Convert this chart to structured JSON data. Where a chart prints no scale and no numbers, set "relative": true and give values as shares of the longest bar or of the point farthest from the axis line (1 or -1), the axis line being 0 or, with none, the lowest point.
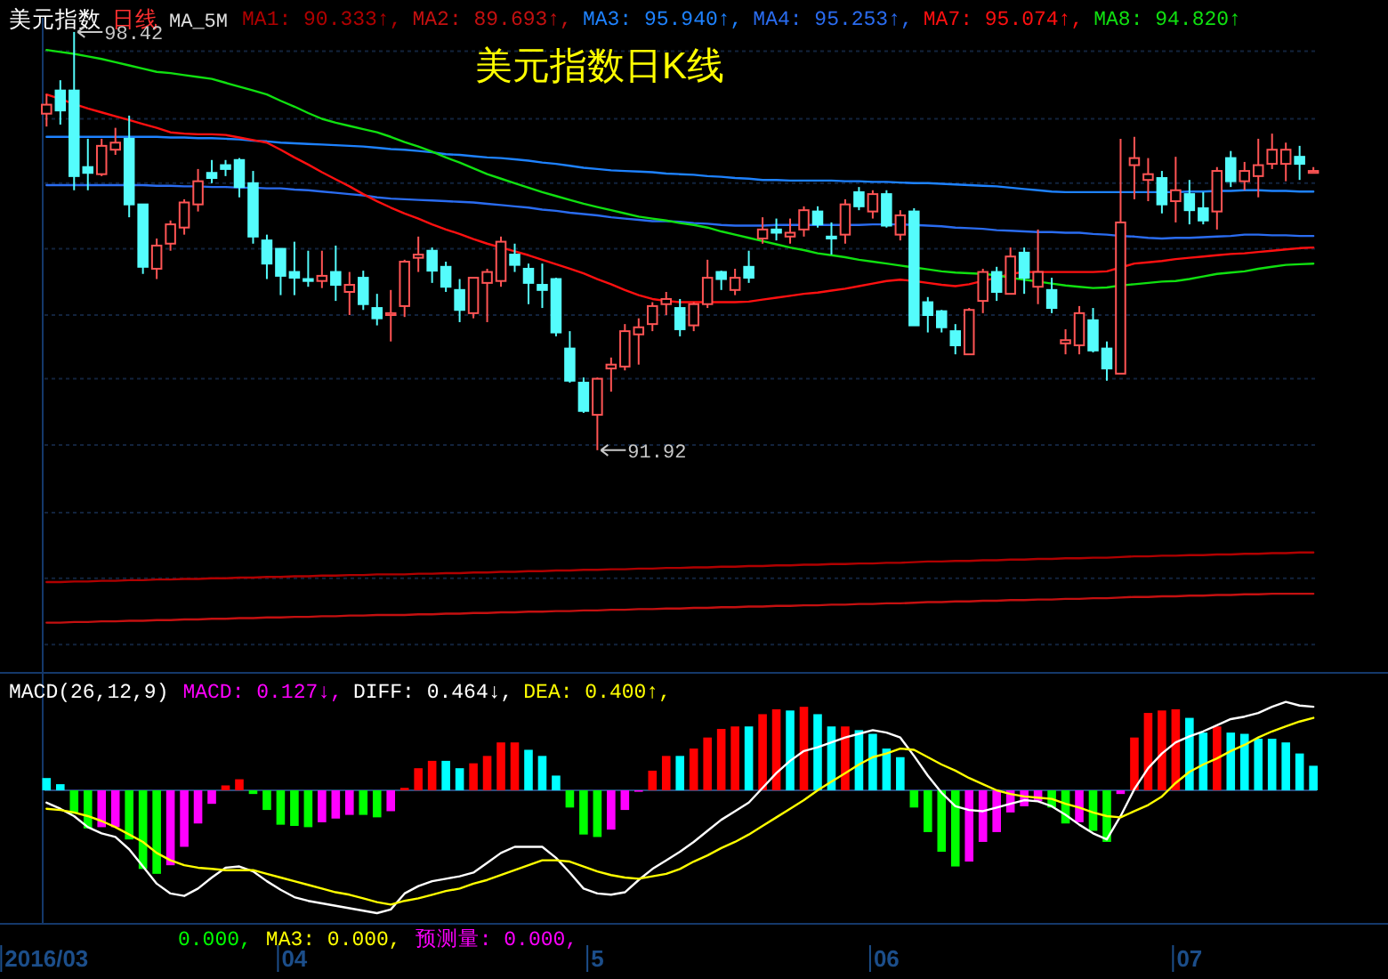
{
  "chart_data": [
    {
      "type": "candlestick",
      "title": "美元指数日K线",
      "annotations": [
        "美元指数",
        "日线",
        "MA_5M",
        "98.42",
        "91.92"
      ],
      "ylim": [
        88.46,
        98.64
      ],
      "yticks": [
        {
          "value": 98.12,
          "label": null
        },
        {
          "value": 97.07,
          "label": null
        },
        {
          "value": 96.07,
          "label": null
        },
        {
          "value": 95.05,
          "label": null
        },
        {
          "value": 94.02,
          "label": null
        },
        {
          "value": 93.03,
          "label": null
        },
        {
          "value": 92.0,
          "label": null
        },
        {
          "value": 90.95,
          "label": null
        },
        {
          "value": 89.93,
          "label": null
        },
        {
          "value": 88.9,
          "label": null
        }
      ],
      "grid": "y",
      "tick_labels": false,
      "categories": [
        null,
        null,
        null,
        null,
        null,
        null,
        null,
        null,
        null,
        null,
        null,
        null,
        null,
        null,
        null,
        null,
        null,
        null,
        null,
        null,
        null,
        null,
        null,
        null,
        null,
        null,
        null,
        null,
        null,
        null,
        null,
        null,
        null,
        null,
        null,
        null,
        null,
        null,
        null,
        null,
        null,
        null,
        null,
        null,
        null,
        null,
        null,
        null,
        null,
        null,
        null,
        null,
        null,
        null,
        null,
        null,
        null,
        null,
        null,
        null,
        null,
        null,
        null,
        null,
        null,
        null,
        null,
        null,
        null,
        null,
        null,
        null,
        null,
        null,
        null,
        null,
        null,
        null,
        null,
        null,
        null,
        null,
        null,
        null,
        null,
        null,
        null,
        null,
        null,
        null,
        null,
        null,
        null
      ],
      "ohlc": [
        [
          97.15,
          97.45,
          96.95,
          97.29
        ],
        [
          97.51,
          97.67,
          96.98,
          97.2
        ],
        [
          97.51,
          98.42,
          95.96,
          96.18
        ],
        [
          96.32,
          96.76,
          95.96,
          96.23
        ],
        [
          96.21,
          96.76,
          96.18,
          96.65
        ],
        [
          96.59,
          96.93,
          96.51,
          96.7
        ],
        [
          96.76,
          97.12,
          95.54,
          95.74
        ],
        [
          95.74,
          95.74,
          94.66,
          94.77
        ],
        [
          94.74,
          95.21,
          94.58,
          95.1
        ],
        [
          95.13,
          95.49,
          95.02,
          95.43
        ],
        [
          95.38,
          95.82,
          95.27,
          95.77
        ],
        [
          95.74,
          96.29,
          95.63,
          96.1
        ],
        [
          96.23,
          96.43,
          96.07,
          96.15
        ],
        [
          96.35,
          96.43,
          96.18,
          96.29
        ],
        [
          96.43,
          96.46,
          95.85,
          96.01
        ],
        [
          96.07,
          96.26,
          95.13,
          95.24
        ],
        [
          95.18,
          95.27,
          94.58,
          94.82
        ],
        [
          95.05,
          95.05,
          94.33,
          94.63
        ],
        [
          94.69,
          95.16,
          94.33,
          94.6
        ],
        [
          94.58,
          95.02,
          94.46,
          94.55
        ],
        [
          94.55,
          95.02,
          94.44,
          94.63
        ],
        [
          94.69,
          95.1,
          94.24,
          94.49
        ],
        [
          94.38,
          94.69,
          94.02,
          94.49
        ],
        [
          94.6,
          94.71,
          94.1,
          94.19
        ],
        [
          94.13,
          94.35,
          93.86,
          93.97
        ],
        [
          94.02,
          94.41,
          93.61,
          94.05
        ],
        [
          94.16,
          94.88,
          93.99,
          94.85
        ],
        [
          94.91,
          95.24,
          94.69,
          94.96
        ],
        [
          95.02,
          95.07,
          94.52,
          94.71
        ],
        [
          94.77,
          94.85,
          94.38,
          94.46
        ],
        [
          94.41,
          94.58,
          93.91,
          94.1
        ],
        [
          94.05,
          94.6,
          93.97,
          94.6
        ],
        [
          94.52,
          94.74,
          93.91,
          94.69
        ],
        [
          94.55,
          95.24,
          94.46,
          95.16
        ],
        [
          94.96,
          95.13,
          94.69,
          94.8
        ],
        [
          94.74,
          94.82,
          94.19,
          94.52
        ],
        [
          94.49,
          94.82,
          94.13,
          94.41
        ],
        [
          94.58,
          94.6,
          93.69,
          93.75
        ],
        [
          93.5,
          93.77,
          92.97,
          93.0
        ],
        [
          92.97,
          93.05,
          92.5,
          92.53
        ],
        [
          92.47,
          93.05,
          91.92,
          93.03
        ],
        [
          93.19,
          93.36,
          92.83,
          93.25
        ],
        [
          93.22,
          93.88,
          93.16,
          93.77
        ],
        [
          93.72,
          93.97,
          93.25,
          93.83
        ],
        [
          93.88,
          94.22,
          93.77,
          94.16
        ],
        [
          94.19,
          94.38,
          94.02,
          94.27
        ],
        [
          94.13,
          94.27,
          93.69,
          93.8
        ],
        [
          93.86,
          94.22,
          93.77,
          94.19
        ],
        [
          94.19,
          94.88,
          94.13,
          94.6
        ],
        [
          94.69,
          94.71,
          94.41,
          94.58
        ],
        [
          94.41,
          94.74,
          94.33,
          94.6
        ],
        [
          94.77,
          95.02,
          94.52,
          94.6
        ],
        [
          95.21,
          95.54,
          95.13,
          95.35
        ],
        [
          95.35,
          95.52,
          95.18,
          95.3
        ],
        [
          95.24,
          95.52,
          95.13,
          95.3
        ],
        [
          95.35,
          95.71,
          95.24,
          95.65
        ],
        [
          95.63,
          95.71,
          95.38,
          95.43
        ],
        [
          95.24,
          95.46,
          94.96,
          95.21
        ],
        [
          95.27,
          95.82,
          95.13,
          95.74
        ],
        [
          95.93,
          96.01,
          95.65,
          95.71
        ],
        [
          95.63,
          95.96,
          95.52,
          95.9
        ],
        [
          95.9,
          95.96,
          95.38,
          95.41
        ],
        [
          95.27,
          95.65,
          95.18,
          95.57
        ],
        [
          95.63,
          95.68,
          93.86,
          93.86
        ],
        [
          94.22,
          94.3,
          93.75,
          94.02
        ],
        [
          94.08,
          94.1,
          93.75,
          93.83
        ],
        [
          93.77,
          93.88,
          93.41,
          93.55
        ],
        [
          93.41,
          94.13,
          93.41,
          94.1
        ],
        [
          94.24,
          94.74,
          94.05,
          94.69
        ],
        [
          94.69,
          94.77,
          94.24,
          94.38
        ],
        [
          94.35,
          95.07,
          94.35,
          94.93
        ],
        [
          94.99,
          95.07,
          94.35,
          94.6
        ],
        [
          94.46,
          95.35,
          94.19,
          94.69
        ],
        [
          94.41,
          94.6,
          94.05,
          94.13
        ],
        [
          93.58,
          93.8,
          93.41,
          93.63
        ],
        [
          93.55,
          94.16,
          93.41,
          94.05
        ],
        [
          93.94,
          94.13,
          93.44,
          93.47
        ],
        [
          93.5,
          93.61,
          93.0,
          93.19
        ],
        [
          93.11,
          96.76,
          93.11,
          95.46
        ],
        [
          96.35,
          96.79,
          95.82,
          96.46
        ],
        [
          96.12,
          96.46,
          95.79,
          96.21
        ],
        [
          96.15,
          96.26,
          95.6,
          95.74
        ],
        [
          95.79,
          96.48,
          95.46,
          95.96
        ],
        [
          95.9,
          96.12,
          95.43,
          95.65
        ],
        [
          95.68,
          95.93,
          95.43,
          95.49
        ],
        [
          95.63,
          96.32,
          95.35,
          96.26
        ],
        [
          96.46,
          96.57,
          96.01,
          96.1
        ],
        [
          96.1,
          96.4,
          95.96,
          96.26
        ],
        [
          96.18,
          96.76,
          95.85,
          96.35
        ],
        [
          96.37,
          96.84,
          96.29,
          96.59
        ],
        [
          96.37,
          96.7,
          96.1,
          96.59
        ],
        [
          96.48,
          96.65,
          96.12,
          96.37
        ],
        [
          96.23,
          96.32,
          96.23,
          96.26
        ]
      ],
      "colors": [
        "#ff5454",
        "#54fcfc",
        "#54fcfc",
        "#54fcfc",
        "#ff5454",
        "#ff5454",
        "#54fcfc",
        "#54fcfc",
        "#ff5454",
        "#ff5454",
        "#ff5454",
        "#ff5454",
        "#54fcfc",
        "#54fcfc",
        "#54fcfc",
        "#54fcfc",
        "#54fcfc",
        "#54fcfc",
        "#54fcfc",
        "#54fcfc",
        "#ff5454",
        "#54fcfc",
        "#ff5454",
        "#54fcfc",
        "#54fcfc",
        "#ff5454",
        "#ff5454",
        "#ff5454",
        "#54fcfc",
        "#54fcfc",
        "#54fcfc",
        "#ff5454",
        "#ff5454",
        "#ff5454",
        "#54fcfc",
        "#54fcfc",
        "#54fcfc",
        "#54fcfc",
        "#54fcfc",
        "#54fcfc",
        "#ff5454",
        "#ff5454",
        "#ff5454",
        "#ff5454",
        "#ff5454",
        "#ff5454",
        "#54fcfc",
        "#ff5454",
        "#ff5454",
        "#54fcfc",
        "#ff5454",
        "#54fcfc",
        "#ff5454",
        "#54fcfc",
        "#ff5454",
        "#ff5454",
        "#54fcfc",
        "#54fcfc",
        "#ff5454",
        "#54fcfc",
        "#ff5454",
        "#54fcfc",
        "#ff5454",
        "#54fcfc",
        "#54fcfc",
        "#54fcfc",
        "#54fcfc",
        "#ff5454",
        "#ff5454",
        "#54fcfc",
        "#ff5454",
        "#54fcfc",
        "#ff5454",
        "#54fcfc",
        "#ff5454",
        "#ff5454",
        "#54fcfc",
        "#54fcfc",
        "#ff5454",
        "#ff5454",
        "#ff5454",
        "#54fcfc",
        "#ff5454",
        "#54fcfc",
        "#54fcfc",
        "#ff5454",
        "#54fcfc",
        "#ff5454",
        "#ff5454",
        "#ff5454",
        "#ff5454",
        "#54fcfc",
        "#ff5454"
      ],
      "series": [
        {
          "name": "MA1: 90.333↑,",
          "type": "line",
          "color": "#b00000",
          "values": [
            89.87,
            89.87,
            89.88,
            89.88,
            89.89,
            89.89,
            89.9,
            89.9,
            89.91,
            89.91,
            89.92,
            89.92,
            89.93,
            89.93,
            89.94,
            89.94,
            89.95,
            89.95,
            89.96,
            89.96,
            89.97,
            89.97,
            89.98,
            89.98,
            89.99,
            89.99,
            89.99,
            90.0,
            90.0,
            90.01,
            90.01,
            90.02,
            90.02,
            90.03,
            90.03,
            90.04,
            90.04,
            90.05,
            90.05,
            90.06,
            90.06,
            90.07,
            90.07,
            90.08,
            90.08,
            90.09,
            90.09,
            90.1,
            90.1,
            90.11,
            90.11,
            90.12,
            90.12,
            90.13,
            90.13,
            90.14,
            90.14,
            90.15,
            90.15,
            90.16,
            90.16,
            90.17,
            90.17,
            90.18,
            90.19,
            90.19,
            90.2,
            90.2,
            90.21,
            90.21,
            90.22,
            90.22,
            90.23,
            90.23,
            90.24,
            90.24,
            90.25,
            90.25,
            90.26,
            90.27,
            90.27,
            90.28,
            90.28,
            90.29,
            90.29,
            90.3,
            90.3,
            90.31,
            90.31,
            90.32,
            90.32,
            90.33,
            90.33
          ]
        },
        {
          "name": "MA2: 89.693↑,",
          "type": "line",
          "color": "#c41010",
          "values": [
            89.24,
            89.24,
            89.25,
            89.25,
            89.26,
            89.26,
            89.27,
            89.27,
            89.28,
            89.28,
            89.29,
            89.29,
            89.3,
            89.3,
            89.31,
            89.31,
            89.32,
            89.32,
            89.33,
            89.33,
            89.34,
            89.34,
            89.35,
            89.35,
            89.36,
            89.36,
            89.36,
            89.37,
            89.37,
            89.38,
            89.38,
            89.39,
            89.39,
            89.4,
            89.4,
            89.41,
            89.41,
            89.42,
            89.42,
            89.43,
            89.43,
            89.44,
            89.44,
            89.45,
            89.45,
            89.46,
            89.46,
            89.47,
            89.47,
            89.48,
            89.48,
            89.49,
            89.49,
            89.5,
            89.5,
            89.51,
            89.51,
            89.52,
            89.52,
            89.53,
            89.53,
            89.54,
            89.54,
            89.55,
            89.56,
            89.56,
            89.57,
            89.57,
            89.58,
            89.58,
            89.59,
            89.59,
            89.6,
            89.6,
            89.61,
            89.61,
            89.62,
            89.62,
            89.63,
            89.64,
            89.64,
            89.65,
            89.65,
            89.66,
            89.66,
            89.67,
            89.67,
            89.68,
            89.68,
            89.69,
            89.69,
            89.69,
            89.69
          ]
        },
        {
          "name": "MA3: 95.940↑,",
          "type": "line",
          "color": "#1e82ff",
          "values": [
            96.79,
            96.79,
            96.79,
            96.79,
            96.79,
            96.79,
            96.79,
            96.79,
            96.79,
            96.78,
            96.78,
            96.77,
            96.77,
            96.76,
            96.75,
            96.73,
            96.72,
            96.7,
            96.69,
            96.68,
            96.67,
            96.66,
            96.65,
            96.64,
            96.62,
            96.6,
            96.59,
            96.57,
            96.55,
            96.52,
            96.51,
            96.49,
            96.47,
            96.46,
            96.44,
            96.42,
            96.39,
            96.37,
            96.34,
            96.31,
            96.29,
            96.27,
            96.26,
            96.25,
            96.24,
            96.22,
            96.21,
            96.2,
            96.18,
            96.17,
            96.15,
            96.14,
            96.12,
            96.12,
            96.11,
            96.11,
            96.11,
            96.11,
            96.1,
            96.1,
            96.09,
            96.09,
            96.08,
            96.07,
            96.07,
            96.06,
            96.05,
            96.04,
            96.03,
            96.02,
            96.0,
            95.98,
            95.96,
            95.94,
            95.93,
            95.93,
            95.93,
            95.93,
            95.93,
            95.93,
            95.93,
            95.93,
            95.93,
            95.94,
            95.94,
            95.95,
            95.95,
            95.96,
            95.96,
            95.95,
            95.95,
            95.94,
            95.94
          ]
        },
        {
          "name": "MA4: 95.253↑,",
          "type": "line",
          "color": "#2a6cf0",
          "values": [
            96.04,
            96.04,
            96.04,
            96.04,
            96.04,
            96.04,
            96.04,
            96.04,
            96.03,
            96.03,
            96.02,
            96.02,
            96.01,
            96.01,
            96.0,
            96.0,
            95.99,
            95.99,
            95.97,
            95.96,
            95.94,
            95.92,
            95.9,
            95.88,
            95.85,
            95.83,
            95.82,
            95.81,
            95.8,
            95.79,
            95.78,
            95.77,
            95.75,
            95.73,
            95.71,
            95.69,
            95.66,
            95.64,
            95.61,
            95.59,
            95.57,
            95.54,
            95.52,
            95.5,
            95.48,
            95.48,
            95.47,
            95.45,
            95.44,
            95.42,
            95.41,
            95.41,
            95.41,
            95.42,
            95.42,
            95.42,
            95.42,
            95.42,
            95.42,
            95.42,
            95.43,
            95.43,
            95.43,
            95.42,
            95.41,
            95.4,
            95.38,
            95.37,
            95.36,
            95.34,
            95.33,
            95.32,
            95.31,
            95.31,
            95.3,
            95.3,
            95.28,
            95.27,
            95.25,
            95.24,
            95.22,
            95.21,
            95.22,
            95.22,
            95.23,
            95.24,
            95.25,
            95.27,
            95.27,
            95.26,
            95.26,
            95.25,
            95.25
          ]
        },
        {
          "name": "MA7: 95.074↑,",
          "type": "line",
          "color": "#ff1010",
          "values": [
            97.45,
            97.38,
            97.3,
            97.23,
            97.17,
            97.11,
            97.05,
            96.99,
            96.93,
            96.86,
            96.84,
            96.83,
            96.83,
            96.82,
            96.78,
            96.74,
            96.7,
            96.59,
            96.47,
            96.36,
            96.24,
            96.13,
            96.02,
            95.9,
            95.79,
            95.69,
            95.6,
            95.52,
            95.43,
            95.35,
            95.28,
            95.2,
            95.13,
            95.07,
            95.01,
            94.95,
            94.88,
            94.81,
            94.74,
            94.67,
            94.58,
            94.5,
            94.41,
            94.33,
            94.27,
            94.24,
            94.22,
            94.22,
            94.22,
            94.22,
            94.22,
            94.23,
            94.26,
            94.29,
            94.32,
            94.35,
            94.37,
            94.4,
            94.43,
            94.47,
            94.51,
            94.55,
            94.57,
            94.55,
            94.52,
            94.49,
            94.47,
            94.5,
            94.55,
            94.6,
            94.66,
            94.69,
            94.69,
            94.69,
            94.69,
            94.69,
            94.69,
            94.7,
            94.76,
            94.82,
            94.84,
            94.86,
            94.89,
            94.91,
            94.93,
            94.95,
            94.97,
            94.98,
            95.0,
            95.02,
            95.04,
            95.06,
            95.07
          ]
        },
        {
          "name": "MA8: 94.820↑",
          "type": "line",
          "color": "#10e010",
          "values": [
            98.14,
            98.11,
            98.08,
            98.04,
            98.0,
            97.95,
            97.9,
            97.85,
            97.8,
            97.78,
            97.75,
            97.72,
            97.69,
            97.63,
            97.57,
            97.51,
            97.45,
            97.35,
            97.26,
            97.16,
            97.07,
            97.01,
            96.96,
            96.91,
            96.86,
            96.79,
            96.71,
            96.64,
            96.56,
            96.47,
            96.39,
            96.3,
            96.21,
            96.14,
            96.07,
            96.0,
            95.93,
            95.87,
            95.81,
            95.75,
            95.7,
            95.65,
            95.6,
            95.55,
            95.52,
            95.49,
            95.45,
            95.42,
            95.38,
            95.32,
            95.27,
            95.22,
            95.17,
            95.12,
            95.07,
            95.03,
            94.98,
            94.95,
            94.92,
            94.88,
            94.85,
            94.82,
            94.79,
            94.76,
            94.73,
            94.7,
            94.68,
            94.67,
            94.66,
            94.64,
            94.6,
            94.57,
            94.54,
            94.51,
            94.48,
            94.46,
            94.44,
            94.45,
            94.48,
            94.5,
            94.52,
            94.54,
            94.55,
            94.58,
            94.62,
            94.66,
            94.68,
            94.7,
            94.74,
            94.77,
            94.8,
            94.81,
            94.82
          ]
        }
      ]
    },
    {
      "type": "bar",
      "relative": true,
      "title": "MACD(26,12,9)",
      "tick_labels": "x",
      "ref_lines": [
        {
          "axis": "y",
          "value": 0,
          "color": "#2a4a7a"
        }
      ],
      "annotations": [
        "0.000,",
        "MA3: 0.000,",
        "预测量: 0.000,"
      ],
      "categories": [
        "2016/03",
        null,
        null,
        null,
        null,
        null,
        null,
        null,
        null,
        null,
        null,
        null,
        null,
        null,
        null,
        null,
        null,
        null,
        "04",
        null,
        null,
        null,
        null,
        null,
        null,
        null,
        null,
        null,
        null,
        null,
        null,
        null,
        null,
        null,
        null,
        null,
        null,
        null,
        null,
        null,
        "5",
        null,
        null,
        null,
        null,
        null,
        null,
        null,
        null,
        null,
        null,
        null,
        null,
        null,
        null,
        null,
        null,
        null,
        null,
        null,
        null,
        "06",
        null,
        null,
        null,
        null,
        null,
        null,
        null,
        null,
        null,
        null,
        null,
        null,
        null,
        null,
        null,
        null,
        null,
        null,
        null,
        null,
        null,
        "07",
        null,
        null,
        null,
        null,
        null,
        null,
        null,
        null,
        null
      ],
      "series": [
        {
          "name": "MACD: 0.127↓,",
          "type": "bar",
          "color": "#ff00ff",
          "values": [
            0.1,
            0.05,
            -0.19,
            -0.31,
            -0.3,
            -0.3,
            -0.4,
            -0.64,
            -0.68,
            -0.61,
            -0.46,
            -0.27,
            -0.11,
            0.04,
            0.09,
            -0.03,
            -0.16,
            -0.28,
            -0.29,
            -0.3,
            -0.26,
            -0.23,
            -0.2,
            -0.2,
            -0.22,
            -0.17,
            0.02,
            0.18,
            0.24,
            0.24,
            0.18,
            0.22,
            0.28,
            0.39,
            0.39,
            0.33,
            0.28,
            0.12,
            -0.14,
            -0.36,
            -0.38,
            -0.32,
            -0.16,
            -0.01,
            0.16,
            0.28,
            0.28,
            0.34,
            0.43,
            0.5,
            0.52,
            0.52,
            0.62,
            0.66,
            0.65,
            0.68,
            0.62,
            0.52,
            0.52,
            0.49,
            0.46,
            0.34,
            0.27,
            -0.14,
            -0.34,
            -0.5,
            -0.62,
            -0.58,
            -0.42,
            -0.34,
            -0.18,
            -0.13,
            -0.09,
            -0.14,
            -0.27,
            -0.26,
            -0.33,
            -0.42,
            -0.03,
            0.43,
            0.63,
            0.65,
            0.66,
            0.59,
            0.47,
            0.52,
            0.47,
            0.46,
            0.42,
            0.42,
            0.39,
            0.3,
            0.2
          ],
          "colors": [
            "#00ffff",
            "#00ffff",
            "#00ff00",
            "#00ff00",
            "#ff00ff",
            "#ff00ff",
            "#00ff00",
            "#00ff00",
            "#00ff00",
            "#ff00ff",
            "#ff00ff",
            "#ff00ff",
            "#ff00ff",
            "#ff0000",
            "#ff0000",
            "#00ff00",
            "#00ff00",
            "#00ff00",
            "#00ff00",
            "#00ff00",
            "#ff00ff",
            "#ff00ff",
            "#ff00ff",
            "#00ff00",
            "#00ff00",
            "#ff00ff",
            "#ff0000",
            "#ff0000",
            "#ff0000",
            "#00ffff",
            "#00ffff",
            "#ff0000",
            "#ff0000",
            "#ff0000",
            "#ff0000",
            "#00ffff",
            "#00ffff",
            "#00ffff",
            "#00ff00",
            "#00ff00",
            "#00ff00",
            "#ff00ff",
            "#ff00ff",
            "#ff00ff",
            "#ff0000",
            "#ff0000",
            "#00ffff",
            "#ff0000",
            "#ff0000",
            "#ff0000",
            "#ff0000",
            "#00ffff",
            "#ff0000",
            "#ff0000",
            "#00ffff",
            "#ff0000",
            "#00ffff",
            "#00ffff",
            "#ff0000",
            "#00ffff",
            "#00ffff",
            "#00ffff",
            "#00ffff",
            "#00ff00",
            "#00ff00",
            "#00ff00",
            "#00ff00",
            "#ff00ff",
            "#ff00ff",
            "#ff00ff",
            "#ff00ff",
            "#ff00ff",
            "#ff00ff",
            "#00ff00",
            "#00ff00",
            "#ff00ff",
            "#00ff00",
            "#00ff00",
            "#ff00ff",
            "#ff0000",
            "#ff0000",
            "#ff0000",
            "#ff0000",
            "#00ffff",
            "#00ffff",
            "#ff0000",
            "#00ffff",
            "#00ffff",
            "#00ffff",
            "#00ffff",
            "#00ffff",
            "#00ffff",
            "#00ffff"
          ]
        },
        {
          "name": "DIFF: 0.464↓,",
          "type": "line",
          "color": "#ffffff",
          "values": [
            -0.1,
            -0.15,
            -0.21,
            -0.3,
            -0.35,
            -0.38,
            -0.48,
            -0.62,
            -0.76,
            -0.84,
            -0.86,
            -0.8,
            -0.71,
            -0.63,
            -0.62,
            -0.66,
            -0.74,
            -0.81,
            -0.87,
            -0.9,
            -0.92,
            -0.94,
            -0.96,
            -0.98,
            -1,
            -0.97,
            -0.84,
            -0.78,
            -0.74,
            -0.72,
            -0.7,
            -0.67,
            -0.59,
            -0.51,
            -0.46,
            -0.46,
            -0.46,
            -0.55,
            -0.67,
            -0.8,
            -0.84,
            -0.85,
            -0.83,
            -0.73,
            -0.64,
            -0.57,
            -0.5,
            -0.42,
            -0.33,
            -0.24,
            -0.17,
            -0.1,
            0.02,
            0.14,
            0.24,
            0.32,
            0.35,
            0.39,
            0.43,
            0.46,
            0.49,
            0.47,
            0.43,
            0.28,
            0.12,
            -0.02,
            -0.13,
            -0.16,
            -0.17,
            -0.14,
            -0.11,
            -0.08,
            -0.09,
            -0.13,
            -0.2,
            -0.28,
            -0.35,
            -0.4,
            -0.21,
            0.01,
            0.18,
            0.3,
            0.39,
            0.44,
            0.48,
            0.53,
            0.58,
            0.6,
            0.63,
            0.68,
            0.72,
            0.69,
            0.68
          ]
        },
        {
          "name": "DEA: 0.400↑,",
          "type": "line",
          "color": "#ffff00",
          "values": [
            -0.15,
            -0.16,
            -0.18,
            -0.21,
            -0.25,
            -0.3,
            -0.36,
            -0.42,
            -0.51,
            -0.57,
            -0.61,
            -0.63,
            -0.64,
            -0.65,
            -0.65,
            -0.65,
            -0.68,
            -0.71,
            -0.74,
            -0.77,
            -0.8,
            -0.83,
            -0.85,
            -0.88,
            -0.91,
            -0.93,
            -0.9,
            -0.88,
            -0.85,
            -0.82,
            -0.8,
            -0.76,
            -0.73,
            -0.69,
            -0.65,
            -0.61,
            -0.57,
            -0.57,
            -0.58,
            -0.62,
            -0.66,
            -0.69,
            -0.71,
            -0.72,
            -0.7,
            -0.68,
            -0.64,
            -0.58,
            -0.53,
            -0.47,
            -0.42,
            -0.36,
            -0.29,
            -0.22,
            -0.15,
            -0.08,
            0.0,
            0.07,
            0.14,
            0.21,
            0.27,
            0.3,
            0.34,
            0.33,
            0.27,
            0.21,
            0.16,
            0.1,
            0.05,
            0.0,
            -0.03,
            -0.05,
            -0.06,
            -0.07,
            -0.11,
            -0.14,
            -0.18,
            -0.21,
            -0.22,
            -0.17,
            -0.12,
            -0.05,
            0.06,
            0.15,
            0.21,
            0.26,
            0.32,
            0.37,
            0.43,
            0.48,
            0.52,
            0.56,
            0.59
          ]
        }
      ]
    }
  ]
}
